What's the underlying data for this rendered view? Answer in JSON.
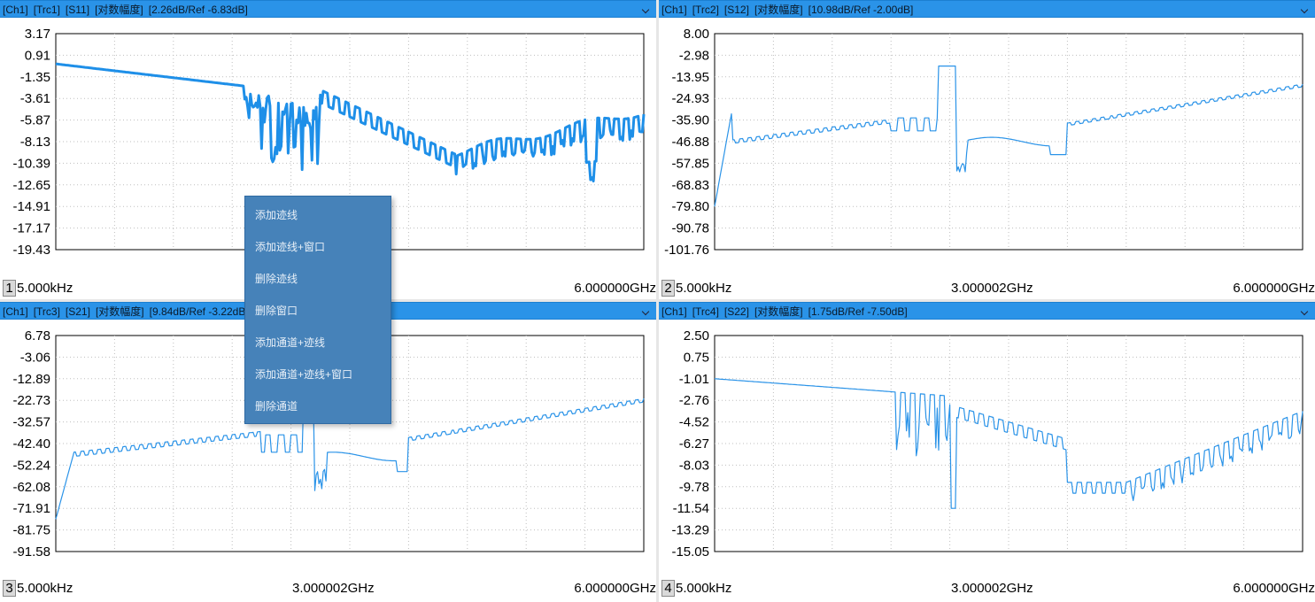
{
  "panels": [
    {
      "header": [
        "[Ch1]",
        "[Trc1]",
        "[S11]",
        "[对数幅度]",
        "[2.26dB/Ref  -6.83dB]"
      ],
      "y_ticks": [
        "3.17",
        "0.91",
        "-1.35",
        "-3.61",
        "-5.87",
        "-8.13",
        "-10.39",
        "-12.65",
        "-14.91",
        "-17.17",
        "-19.43"
      ],
      "footer": {
        "num": "1",
        "start": "5.000kHz",
        "mid": "",
        "end": "6.000000GHz"
      },
      "trace_color": "#1e8fe8"
    },
    {
      "header": [
        "[Ch1]",
        "[Trc2]",
        "[S12]",
        "[对数幅度]",
        "[10.98dB/Ref  -2.00dB]"
      ],
      "y_ticks": [
        "8.00",
        "-2.98",
        "-13.95",
        "-24.93",
        "-35.90",
        "-46.88",
        "-57.85",
        "-68.83",
        "-79.80",
        "-90.78",
        "-101.76"
      ],
      "footer": {
        "num": "2",
        "start": "5.000kHz",
        "mid": "3.000002GHz",
        "end": "6.000000GHz"
      },
      "trace_color": "#2a93e8"
    },
    {
      "header": [
        "[Ch1]",
        "[Trc3]",
        "[S21]",
        "[对数幅度]",
        "[9.84dB/Ref  -3.22dB]"
      ],
      "y_ticks": [
        "6.78",
        "-3.06",
        "-12.89",
        "-22.73",
        "-32.57",
        "-42.40",
        "-52.24",
        "-62.08",
        "-71.91",
        "-81.75",
        "-91.58"
      ],
      "footer": {
        "num": "3",
        "start": "5.000kHz",
        "mid": "3.000002GHz",
        "end": "6.000000GHz"
      },
      "trace_color": "#2a93e8"
    },
    {
      "header": [
        "[Ch1]",
        "[Trc4]",
        "[S22]",
        "[对数幅度]",
        "[1.75dB/Ref  -7.50dB]"
      ],
      "y_ticks": [
        "2.50",
        "0.75",
        "-1.01",
        "-2.76",
        "-4.52",
        "-6.27",
        "-8.03",
        "-9.78",
        "-11.54",
        "-13.29",
        "-15.05"
      ],
      "footer": {
        "num": "4",
        "start": "5.000kHz",
        "mid": "3.000002GHz",
        "end": "6.000000GHz"
      },
      "trace_color": "#2a93e8"
    }
  ],
  "context_menu": {
    "items": [
      "添加迹线",
      "添加迹线+窗口",
      "删除迹线",
      "删除窗口",
      "添加通道+迹线",
      "添加通道+迹线+窗口",
      "删除通道"
    ]
  }
}
